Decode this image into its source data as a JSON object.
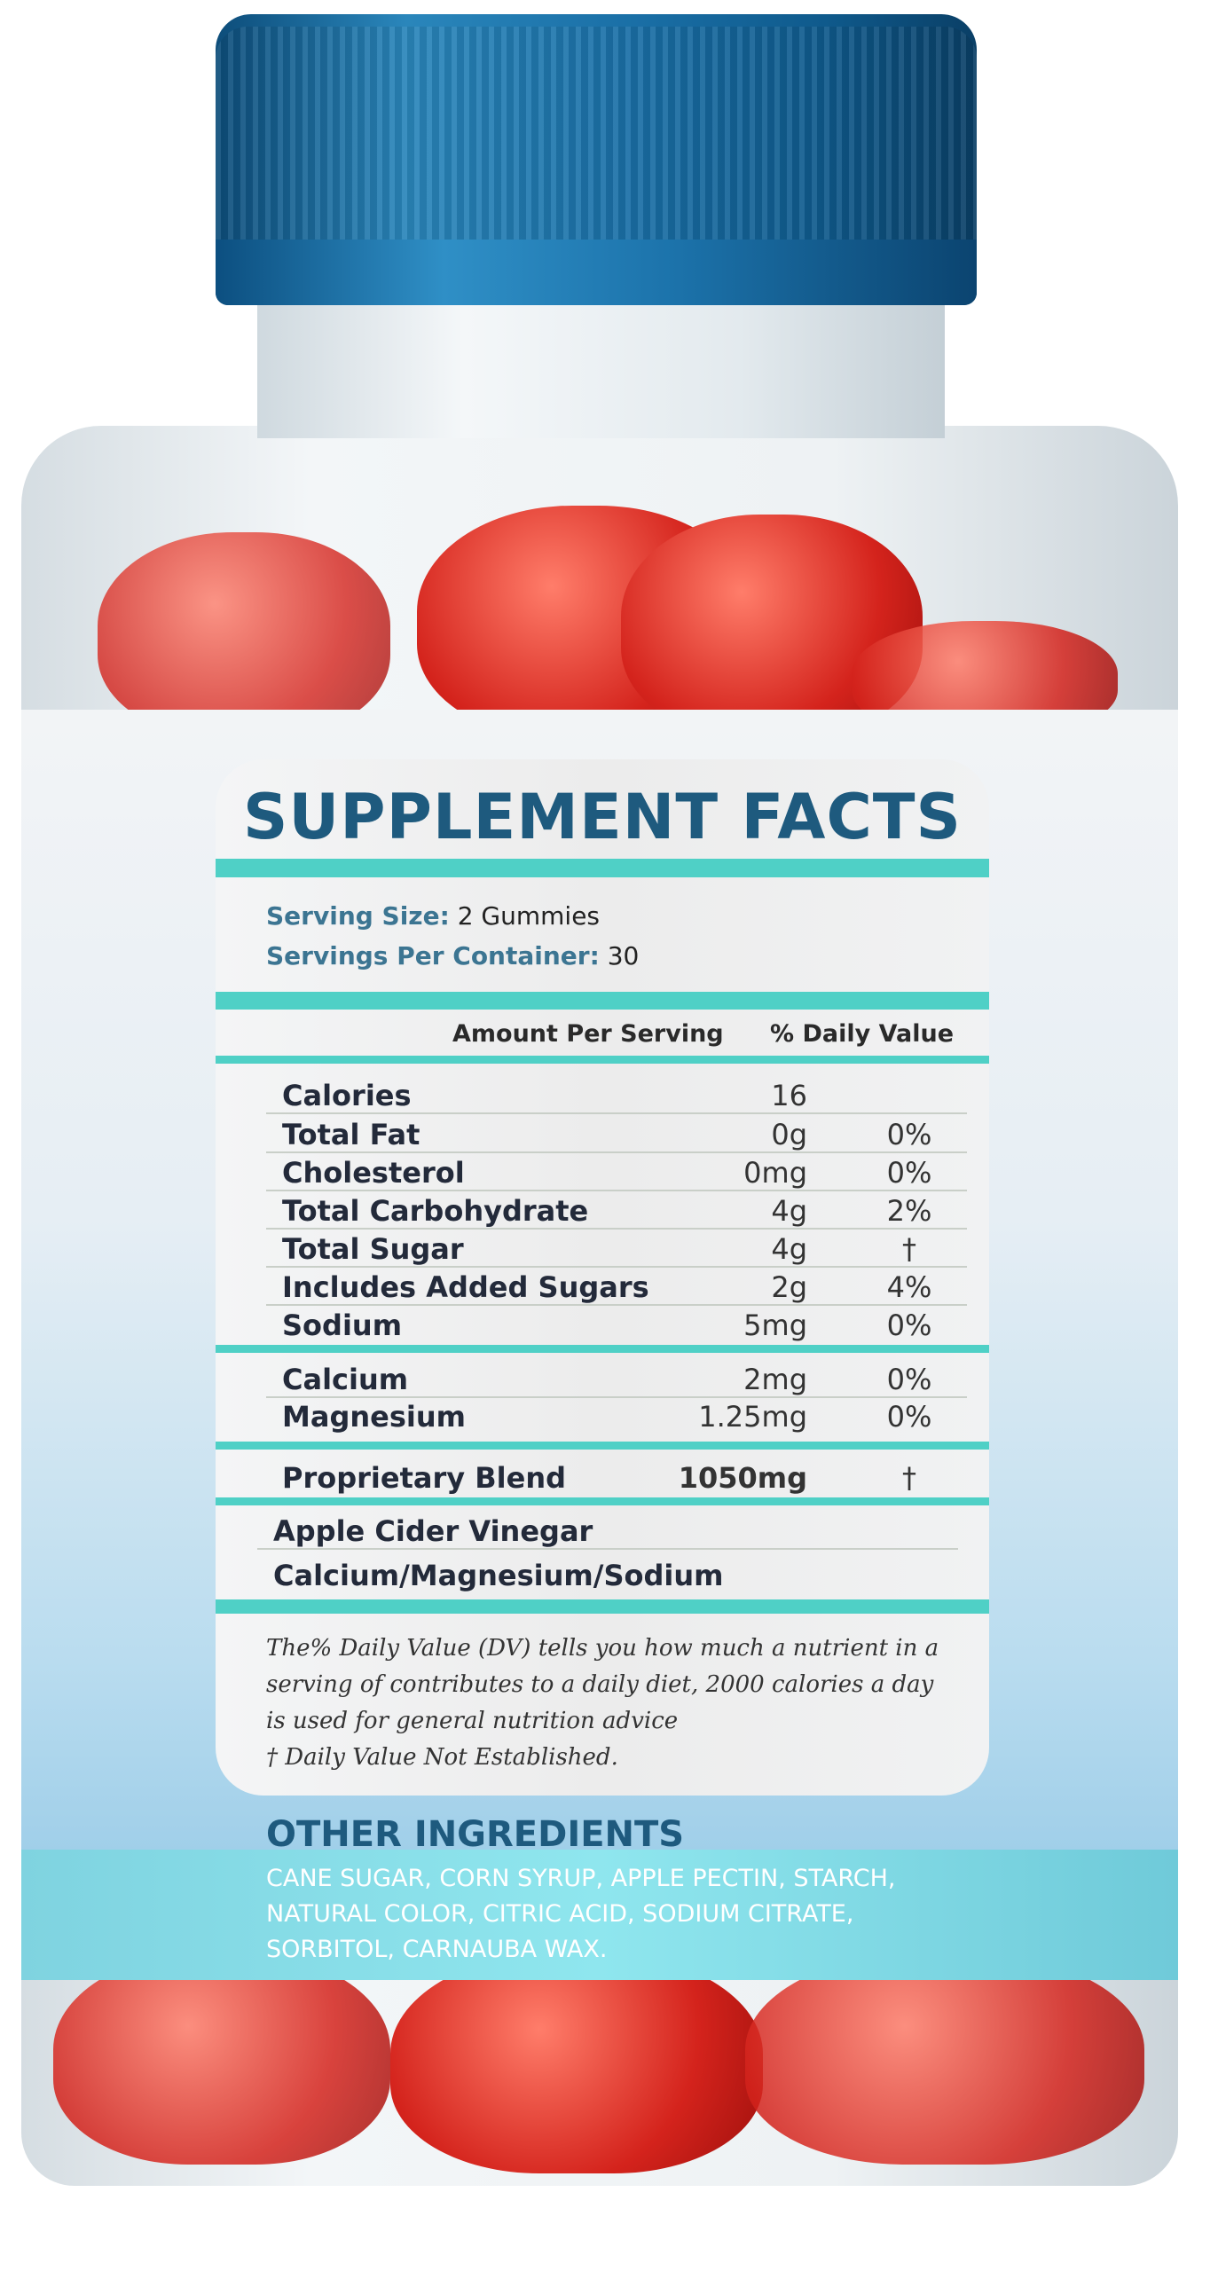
{
  "title": "SUPPLEMENT FACTS",
  "serving": {
    "size_label": "Serving Size:",
    "size_value": "2 Gummies",
    "per_label": "Servings Per Container:",
    "per_value": "30"
  },
  "header": {
    "amount": "Amount Per Serving",
    "dv": "% Daily Value"
  },
  "rows": [
    {
      "name": "Calories",
      "amount": "16",
      "dv": ""
    },
    {
      "name": "Total Fat",
      "amount": "0g",
      "dv": "0%"
    },
    {
      "name": "Cholesterol",
      "amount": "0mg",
      "dv": "0%"
    },
    {
      "name": "Total Carbohydrate",
      "amount": "4g",
      "dv": "2%"
    },
    {
      "name": "Total Sugar",
      "amount": "4g",
      "dv": "†"
    },
    {
      "name": "Includes Added Sugars",
      "amount": "2g",
      "dv": "4%"
    },
    {
      "name": "Sodium",
      "amount": "5mg",
      "dv": "0%"
    },
    {
      "name": "Calcium",
      "amount": "2mg",
      "dv": "0%"
    },
    {
      "name": "Magnesium",
      "amount": "1.25mg",
      "dv": "0%"
    },
    {
      "name": "Proprietary Blend",
      "amount": "1050mg",
      "dv": "†"
    }
  ],
  "blend": [
    "Apple Cider Vinegar",
    "Calcium/Magnesium/Sodium"
  ],
  "footnote": [
    "The% Daily Value (DV) tells you how much a nutrient in a",
    "serving of contributes to a daily diet, 2000 calories a day",
    "is used for general nutrition advice",
    "† Daily Value Not Established."
  ],
  "other": {
    "title": "OTHER INGREDIENTS",
    "lines": [
      "CANE SUGAR, CORN SYRUP, APPLE PECTIN, STARCH,",
      "NATURAL COLOR, CITRIC ACID, SODIUM CITRATE,",
      "SORBITOL, CARNAUBA WAX."
    ]
  },
  "colors": {
    "cap": "#1a6fa6",
    "teal": "#4fd0c6",
    "title": "#1e5a7e",
    "gummy": "#d4231c"
  }
}
